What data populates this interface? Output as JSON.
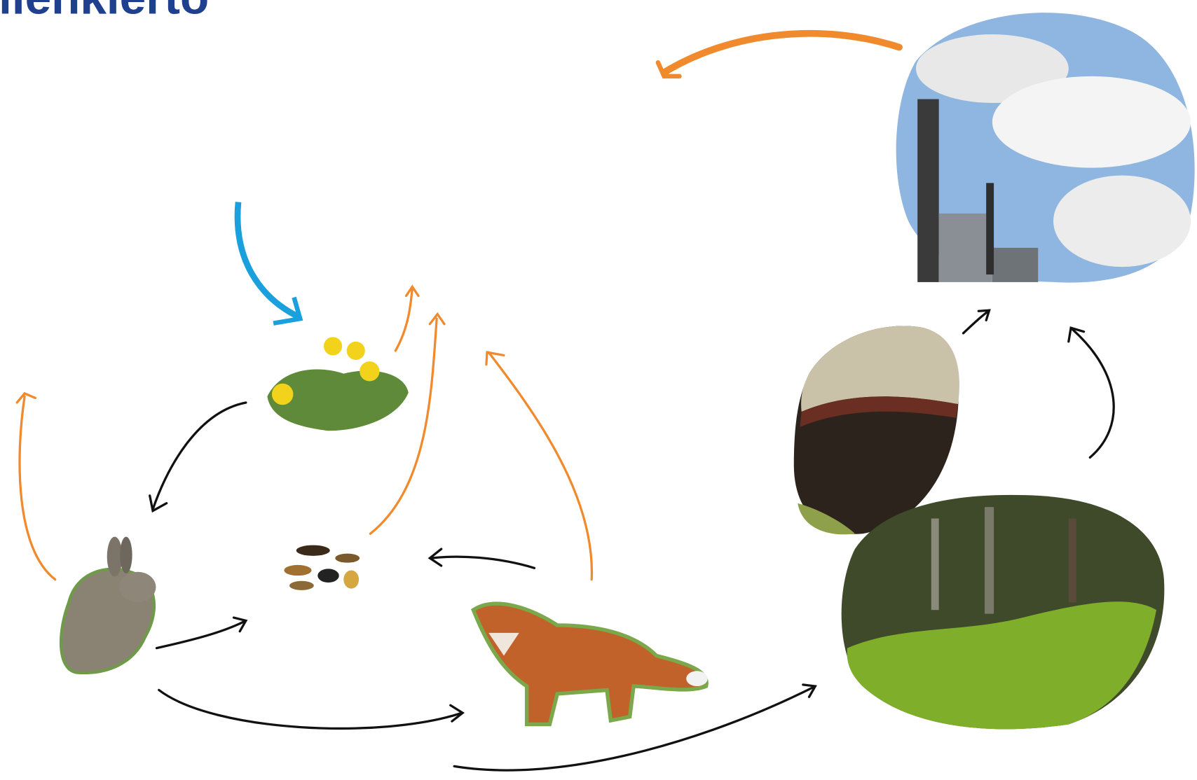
{
  "header": {
    "title": "ilenkierto"
  }
}
